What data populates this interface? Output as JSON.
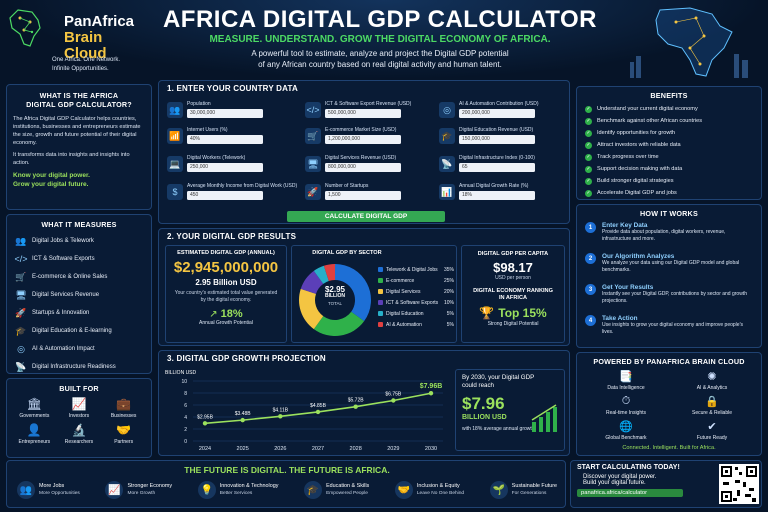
{
  "brand": {
    "name_line1": "PanAfrica",
    "name_line2": "Brain Cloud",
    "tagline1": "One Africa. One Network.",
    "tagline2": "Infinite Opportunities."
  },
  "header": {
    "title": "AFRICA DIGITAL GDP CALCULATOR",
    "subtitle": "MEASURE. UNDERSTAND. GROW THE DIGITAL ECONOMY OF AFRICA.",
    "desc1": "A powerful tool to estimate, analyze and project the Digital GDP potential",
    "desc2": "of any African country based on real digital activity and human talent."
  },
  "what": {
    "title1": "WHAT IS THE AFRICA",
    "title2": "DIGITAL GDP CALCULATOR?",
    "p1": "The Africa Digital GDP Calculator helps countries, institutions, businesses and entrepreneurs estimate the size, growth and future potential of their digital economy.",
    "p2": "It transforms data into insights and insights into action.",
    "cta1": "Know your digital power.",
    "cta2": "Grow your digital future."
  },
  "measures": {
    "title": "WHAT IT MEASURES",
    "items": [
      "Digital Jobs & Telework",
      "ICT & Software Exports",
      "E-commerce & Online Sales",
      "Digital Services Revenue",
      "Startups & Innovation",
      "Digital Education & E-learning",
      "AI & Automation Impact",
      "Digital Infrastructure Readiness"
    ]
  },
  "built": {
    "title": "BUILT FOR",
    "items": [
      "Governments",
      "Investors",
      "Businesses",
      "Entrepreneurs",
      "Researchers",
      "Partners"
    ]
  },
  "input": {
    "title": "1. ENTER YOUR COUNTRY DATA",
    "button": "CALCULATE DIGITAL GDP",
    "fields": [
      {
        "label": "Population",
        "value": "30,000,000",
        "icon": "people-icon"
      },
      {
        "label": "Internet Users (%)",
        "value": "40%",
        "icon": "wifi-icon"
      },
      {
        "label": "Digital Workers (Telework)",
        "value": "250,000",
        "icon": "worker-icon"
      },
      {
        "label": "Average Monthly Income from Digital Work (USD)",
        "value": "450",
        "icon": "dollar-icon"
      },
      {
        "label": "ICT & Software Export Revenue (USD)",
        "value": "500,000,000",
        "icon": "code-icon"
      },
      {
        "label": "E-commerce Market Size (USD)",
        "value": "1,200,000,000",
        "icon": "cart-icon"
      },
      {
        "label": "Digital Services Revenue (USD)",
        "value": "800,000,000",
        "icon": "monitor-icon"
      },
      {
        "label": "Number of Startups",
        "value": "1,500",
        "icon": "rocket-icon"
      },
      {
        "label": "AI & Automation Contribution (USD)",
        "value": "200,000,000",
        "icon": "ai-icon"
      },
      {
        "label": "Digital Education Revenue (USD)",
        "value": "150,000,000",
        "icon": "graduation-icon"
      },
      {
        "label": "Digital Infrastructure Index (0-100)",
        "value": "65",
        "icon": "signal-icon"
      },
      {
        "label": "Annual Digital Growth Rate (%)",
        "value": "18%",
        "icon": "growth-icon"
      }
    ]
  },
  "results": {
    "title": "2. YOUR DIGITAL GDP RESULTS",
    "est_label": "ESTIMATED DIGITAL GDP (ANNUAL)",
    "est_value": "$2,945,000,000",
    "est_short": "2.95 Billion USD",
    "est_note": "Your country's estimated total value generated by the digital economy.",
    "growth_value": "18%",
    "growth_label": "Annual Growth Potential",
    "sector_title": "DIGITAL GDP BY SECTOR",
    "donut_value": "$2.95",
    "donut_unit": "BILLION",
    "donut_total": "TOTAL",
    "per_capita_title": "DIGITAL GDP PER CAPITA",
    "per_capita_value": "$98.17",
    "per_capita_unit": "USD per person",
    "ranking_title1": "DIGITAL ECONOMY RANKING",
    "ranking_title2": "IN AFRICA",
    "ranking_value": "Top 15%",
    "ranking_label": "Strong Digital Potential"
  },
  "sector_chart": {
    "type": "pie",
    "labels": [
      "Telework & Digital Jobs",
      "E-commerce",
      "Digital Services",
      "ICT & Software Exports",
      "Digital Education",
      "AI & Automation"
    ],
    "values": [
      35,
      25,
      20,
      10,
      5,
      5
    ],
    "value_labels": [
      "35%",
      "25%",
      "20%",
      "10%",
      "5%",
      "5%"
    ],
    "colors": [
      "#1d6fd6",
      "#2fb14a",
      "#f4c542",
      "#5b3fb8",
      "#27b0c9",
      "#e04040"
    ]
  },
  "projection": {
    "title": "3. DIGITAL GDP GROWTH PROJECTION",
    "note1": "By 2030, your Digital GDP",
    "note2": "could reach",
    "big": "$7.96",
    "big_unit": "BILLION USD",
    "note3": "with 18% average annual growth."
  },
  "chart_data": {
    "type": "line",
    "ylabel": "BILLION USD",
    "x": [
      "2024",
      "2025",
      "2026",
      "2027",
      "2028",
      "2029",
      "2030"
    ],
    "values": [
      2.95,
      3.48,
      4.11,
      4.85,
      5.72,
      6.75,
      7.96
    ],
    "data_labels": [
      "$2.95B",
      "$3.48B",
      "$4.11B",
      "$4.85B",
      "$5.72B",
      "$6.75B",
      "$7.96B"
    ],
    "ylim": [
      0,
      10
    ],
    "yticks": [
      "0",
      "2",
      "4",
      "6",
      "8",
      "10"
    ]
  },
  "benefits": {
    "title": "BENEFITS",
    "items": [
      "Understand your current digital economy",
      "Benchmark against other African countries",
      "Identify opportunities for growth",
      "Attract investors with reliable data",
      "Track progress over time",
      "Support decision making with data",
      "Build stronger digital strategies",
      "Accelerate Digital GDP and jobs"
    ]
  },
  "how": {
    "title": "HOW IT WORKS",
    "steps": [
      {
        "n": "1",
        "title": "Enter Key Data",
        "desc": "Provide data about population, digital workers, revenue, infrastructure and more."
      },
      {
        "n": "2",
        "title": "Our Algorithm Analyzes",
        "desc": "We analyze your data using our Digital GDP model and global benchmarks."
      },
      {
        "n": "3",
        "title": "Get Your Results",
        "desc": "Instantly see your Digital GDP, contributions by sector and growth projections."
      },
      {
        "n": "4",
        "title": "Take Action",
        "desc": "Use insights to grow your digital economy and improve people's lives."
      }
    ]
  },
  "powered": {
    "title": "POWERED BY PANAFRICA BRAIN CLOUD",
    "items": [
      "Data Intelligence",
      "AI & Analytics",
      "Real-time Insights",
      "Secure & Reliable",
      "Global Benchmark",
      "Future Ready"
    ],
    "tag": "Connected. Intelligent. Built for Africa."
  },
  "future": {
    "title": "THE FUTURE IS DIGITAL. THE FUTURE IS AFRICA.",
    "items": [
      {
        "t": "More Jobs",
        "s": "More Opportunities"
      },
      {
        "t": "Stronger Economy",
        "s": "More Growth"
      },
      {
        "t": "Innovation & Technology",
        "s": "Better Services"
      },
      {
        "t": "Education & Skills",
        "s": "Empowered People"
      },
      {
        "t": "Inclusion & Equity",
        "s": "Leave No One Behind"
      },
      {
        "t": "Sustainable Future",
        "s": "For Generations"
      }
    ]
  },
  "start": {
    "title": "START CALCULATING TODAY!",
    "l1": "Discover your digital power.",
    "l2": "Build your digital future.",
    "url": "panafrica.africa/calculator"
  }
}
